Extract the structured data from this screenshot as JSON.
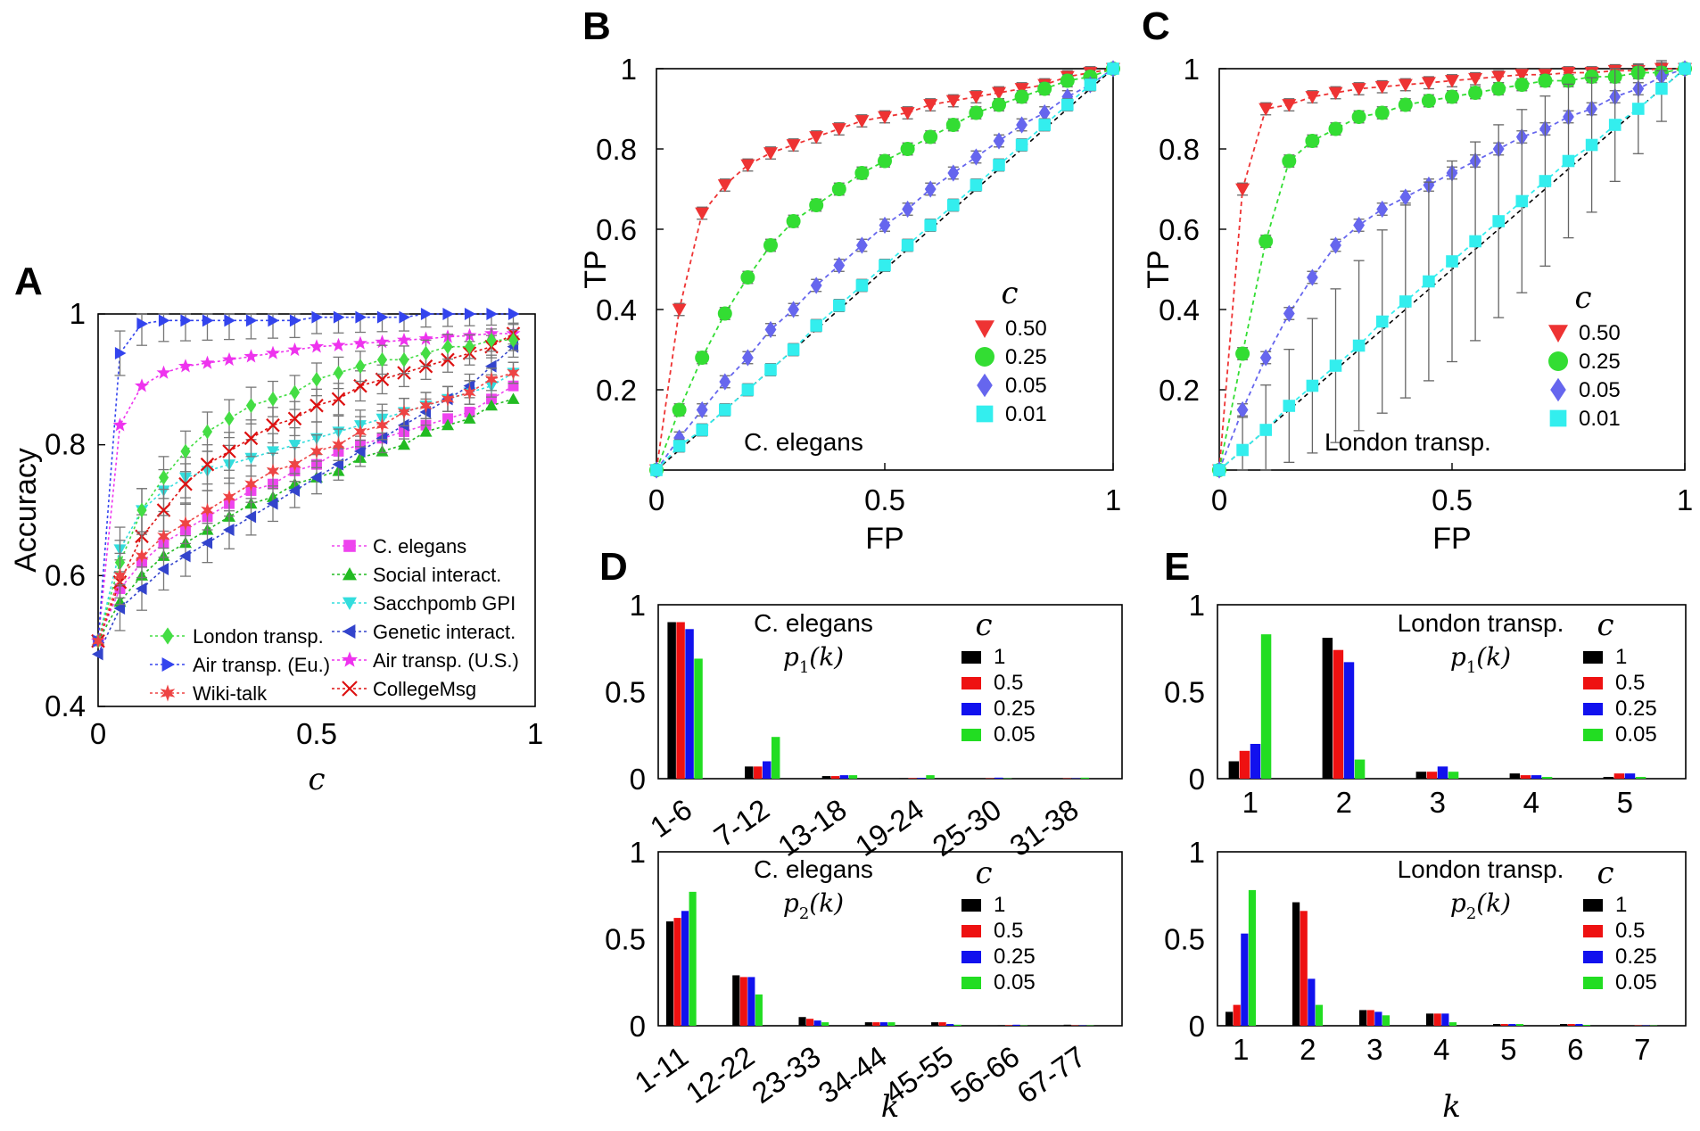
{
  "panel_labels": [
    "A",
    "B",
    "C",
    "D",
    "E"
  ],
  "chart_data": [
    {
      "id": "A",
      "type": "line",
      "xlabel": "c",
      "ylabel": "Accuracy",
      "xlim": [
        0,
        1
      ],
      "ylim": [
        0.4,
        1
      ],
      "xticks": [
        "0",
        "0.5",
        "1"
      ],
      "yticks": [
        "0.4",
        "0.6",
        "0.8",
        "1"
      ],
      "x": [
        0,
        0.05,
        0.1,
        0.15,
        0.2,
        0.25,
        0.3,
        0.35,
        0.4,
        0.45,
        0.5,
        0.55,
        0.6,
        0.65,
        0.7,
        0.75,
        0.8,
        0.85,
        0.9,
        0.95
      ],
      "series": [
        {
          "name": "C. elegans",
          "color": "#ee44ee",
          "marker": "square",
          "errors": false,
          "values": [
            0.5,
            0.58,
            0.62,
            0.65,
            0.67,
            0.69,
            0.71,
            0.73,
            0.74,
            0.76,
            0.77,
            0.79,
            0.8,
            0.81,
            0.82,
            0.83,
            0.84,
            0.85,
            0.87,
            0.89
          ]
        },
        {
          "name": "Social interact.",
          "color": "#22bb22",
          "marker": "triangle-up",
          "errors": false,
          "values": [
            0.5,
            0.56,
            0.6,
            0.63,
            0.65,
            0.67,
            0.69,
            0.71,
            0.72,
            0.74,
            0.75,
            0.76,
            0.78,
            0.79,
            0.8,
            0.82,
            0.83,
            0.84,
            0.86,
            0.87
          ]
        },
        {
          "name": "Sacchpomb GPI",
          "color": "#33dddd",
          "marker": "triangle-down",
          "errors": true,
          "values": [
            0.5,
            0.64,
            0.7,
            0.73,
            0.75,
            0.76,
            0.77,
            0.78,
            0.79,
            0.8,
            0.81,
            0.82,
            0.83,
            0.84,
            0.85,
            0.86,
            0.87,
            0.88,
            0.89,
            0.91
          ]
        },
        {
          "name": "Genetic interact.",
          "color": "#3344cc",
          "marker": "triangle-left",
          "errors": true,
          "values": [
            0.48,
            0.55,
            0.58,
            0.61,
            0.63,
            0.65,
            0.67,
            0.69,
            0.71,
            0.73,
            0.75,
            0.77,
            0.79,
            0.81,
            0.83,
            0.85,
            0.87,
            0.89,
            0.92,
            0.95
          ]
        },
        {
          "name": "Air transp. (U.S.)",
          "color": "#ee33ee",
          "marker": "star",
          "errors": false,
          "values": [
            0.5,
            0.83,
            0.89,
            0.91,
            0.92,
            0.925,
            0.93,
            0.935,
            0.94,
            0.945,
            0.95,
            0.952,
            0.955,
            0.957,
            0.96,
            0.962,
            0.965,
            0.967,
            0.97,
            0.97
          ]
        },
        {
          "name": "CollegeMsg",
          "color": "#dd1111",
          "marker": "x",
          "errors": true,
          "values": [
            0.5,
            0.59,
            0.66,
            0.7,
            0.74,
            0.77,
            0.79,
            0.81,
            0.83,
            0.84,
            0.86,
            0.87,
            0.89,
            0.9,
            0.91,
            0.92,
            0.93,
            0.94,
            0.95,
            0.97
          ]
        },
        {
          "name": "London transp.",
          "color": "#44dd44",
          "marker": "diamond",
          "errors": true,
          "values": [
            0.5,
            0.62,
            0.7,
            0.75,
            0.79,
            0.82,
            0.84,
            0.86,
            0.87,
            0.88,
            0.9,
            0.91,
            0.92,
            0.93,
            0.93,
            0.94,
            0.95,
            0.95,
            0.96,
            0.96
          ]
        },
        {
          "name": "Air transp. (Eu.)",
          "color": "#3344ee",
          "marker": "triangle-right",
          "errors": true,
          "values": [
            0.5,
            0.94,
            0.985,
            0.99,
            0.99,
            0.99,
            0.99,
            0.99,
            0.99,
            0.99,
            0.995,
            0.995,
            0.995,
            0.995,
            0.995,
            1,
            1,
            1,
            1,
            1
          ]
        },
        {
          "name": "Wiki-talk",
          "color": "#ee4444",
          "marker": "hexstar",
          "errors": true,
          "values": [
            0.5,
            0.6,
            0.63,
            0.66,
            0.68,
            0.7,
            0.72,
            0.74,
            0.76,
            0.77,
            0.79,
            0.8,
            0.82,
            0.83,
            0.85,
            0.86,
            0.87,
            0.88,
            0.9,
            0.91
          ]
        }
      ],
      "legend_right": [
        "C. elegans",
        "Social interact.",
        "Sacchpomb GPI",
        "Genetic interact.",
        "Air transp. (U.S.)",
        "CollegeMsg"
      ],
      "legend_left": [
        "London transp.",
        "Air transp. (Eu.)",
        "Wiki-talk"
      ]
    },
    {
      "id": "B",
      "type": "line",
      "annotation": "C. elegans",
      "xlabel": "FP",
      "ylabel": "TP",
      "xlim": [
        0,
        1
      ],
      "ylim": [
        0,
        1
      ],
      "xticks": [
        "0",
        "0.5",
        "1"
      ],
      "yticks": [
        "0.2",
        "0.4",
        "0.6",
        "0.8",
        "1"
      ],
      "legend_title": "c",
      "x": [
        0,
        0.05,
        0.1,
        0.15,
        0.2,
        0.25,
        0.3,
        0.35,
        0.4,
        0.45,
        0.5,
        0.55,
        0.6,
        0.65,
        0.7,
        0.75,
        0.8,
        0.85,
        0.9,
        0.95,
        1
      ],
      "series": [
        {
          "name": "0.50",
          "color": "#ee3333",
          "marker": "triangle-down",
          "values": [
            0,
            0.4,
            0.64,
            0.71,
            0.76,
            0.79,
            0.81,
            0.83,
            0.85,
            0.87,
            0.88,
            0.89,
            0.91,
            0.92,
            0.93,
            0.94,
            0.95,
            0.96,
            0.98,
            0.99,
            1
          ]
        },
        {
          "name": "0.25",
          "color": "#33dd33",
          "marker": "circle",
          "values": [
            0,
            0.15,
            0.28,
            0.39,
            0.48,
            0.56,
            0.62,
            0.66,
            0.7,
            0.74,
            0.77,
            0.8,
            0.83,
            0.86,
            0.89,
            0.91,
            0.93,
            0.95,
            0.97,
            0.98,
            1
          ]
        },
        {
          "name": "0.05",
          "color": "#6666ee",
          "marker": "diamond",
          "values": [
            0,
            0.08,
            0.15,
            0.22,
            0.28,
            0.35,
            0.4,
            0.46,
            0.51,
            0.56,
            0.61,
            0.65,
            0.7,
            0.74,
            0.78,
            0.82,
            0.86,
            0.89,
            0.93,
            0.96,
            1
          ]
        },
        {
          "name": "0.01",
          "color": "#33eeee",
          "marker": "square",
          "values": [
            0,
            0.06,
            0.1,
            0.15,
            0.2,
            0.25,
            0.3,
            0.36,
            0.41,
            0.46,
            0.51,
            0.56,
            0.61,
            0.66,
            0.71,
            0.76,
            0.81,
            0.86,
            0.91,
            0.96,
            1
          ]
        }
      ]
    },
    {
      "id": "C",
      "type": "line",
      "annotation": "London transp.",
      "xlabel": "FP",
      "ylabel": "TP",
      "xlim": [
        0,
        1
      ],
      "ylim": [
        0,
        1
      ],
      "xticks": [
        "0",
        "0.5",
        "1"
      ],
      "yticks": [
        "0.2",
        "0.4",
        "0.6",
        "0.8",
        "1"
      ],
      "legend_title": "c",
      "x": [
        0,
        0.05,
        0.1,
        0.15,
        0.2,
        0.25,
        0.3,
        0.35,
        0.4,
        0.45,
        0.5,
        0.55,
        0.6,
        0.65,
        0.7,
        0.75,
        0.8,
        0.85,
        0.9,
        0.95,
        1
      ],
      "series": [
        {
          "name": "0.50",
          "color": "#ee3333",
          "marker": "triangle-down",
          "values": [
            0,
            0.7,
            0.9,
            0.91,
            0.93,
            0.94,
            0.95,
            0.955,
            0.96,
            0.965,
            0.97,
            0.975,
            0.98,
            0.985,
            0.985,
            0.99,
            0.99,
            0.995,
            0.995,
            1,
            1
          ]
        },
        {
          "name": "0.25",
          "color": "#33dd33",
          "marker": "circle",
          "values": [
            0,
            0.29,
            0.57,
            0.77,
            0.82,
            0.85,
            0.88,
            0.89,
            0.91,
            0.92,
            0.93,
            0.94,
            0.95,
            0.96,
            0.97,
            0.97,
            0.98,
            0.98,
            0.99,
            0.99,
            1
          ]
        },
        {
          "name": "0.05",
          "color": "#6666ee",
          "marker": "diamond",
          "values": [
            0,
            0.15,
            0.28,
            0.39,
            0.48,
            0.56,
            0.61,
            0.65,
            0.68,
            0.71,
            0.74,
            0.77,
            0.8,
            0.83,
            0.85,
            0.88,
            0.9,
            0.93,
            0.95,
            0.98,
            1
          ]
        },
        {
          "name": "0.01",
          "color": "#33eeee",
          "marker": "square",
          "values": [
            0,
            0.05,
            0.1,
            0.16,
            0.21,
            0.26,
            0.31,
            0.37,
            0.42,
            0.47,
            0.52,
            0.57,
            0.62,
            0.67,
            0.72,
            0.77,
            0.81,
            0.86,
            0.9,
            0.95,
            1
          ]
        }
      ]
    },
    {
      "id": "D1",
      "type": "bar",
      "annotation": "C. elegans",
      "ylabel_math": "p1(k)",
      "ylim": [
        0,
        1
      ],
      "yticks": [
        "0",
        "0.5",
        "1"
      ],
      "categories": [
        "1-6",
        "7-12",
        "13-18",
        "19-24",
        "25-30",
        "31-38"
      ],
      "legend_title": "c",
      "series": [
        {
          "name": "1",
          "color": "#000000",
          "values": [
            0.9,
            0.07,
            0.015,
            0.003,
            0.002,
            0.002
          ]
        },
        {
          "name": "0.5",
          "color": "#ee1111",
          "values": [
            0.9,
            0.07,
            0.015,
            0.003,
            0.002,
            0.002
          ]
        },
        {
          "name": "0.25",
          "color": "#1111ee",
          "values": [
            0.86,
            0.1,
            0.02,
            0.004,
            0.006,
            0.002
          ]
        },
        {
          "name": "0.05",
          "color": "#22dd22",
          "values": [
            0.69,
            0.24,
            0.02,
            0.02,
            0.002,
            0.006
          ]
        }
      ]
    },
    {
      "id": "D2",
      "type": "bar",
      "annotation": "C. elegans",
      "ylabel_math": "p2(k)",
      "xlabel": "k",
      "ylim": [
        0,
        1
      ],
      "yticks": [
        "0",
        "0.5",
        "1"
      ],
      "categories": [
        "1-11",
        "12-22",
        "23-33",
        "34-44",
        "45-55",
        "56-66",
        "67-77"
      ],
      "legend_title": "c",
      "series": [
        {
          "name": "1",
          "color": "#000000",
          "values": [
            0.6,
            0.29,
            0.05,
            0.02,
            0.02,
            0.003,
            0.006
          ]
        },
        {
          "name": "0.5",
          "color": "#ee1111",
          "values": [
            0.62,
            0.28,
            0.04,
            0.02,
            0.02,
            0.003,
            0.002
          ]
        },
        {
          "name": "0.25",
          "color": "#1111ee",
          "values": [
            0.66,
            0.28,
            0.03,
            0.02,
            0.01,
            0.006,
            0.002
          ]
        },
        {
          "name": "0.05",
          "color": "#22dd22",
          "values": [
            0.77,
            0.18,
            0.02,
            0.02,
            0.006,
            0.002,
            0.002
          ]
        }
      ]
    },
    {
      "id": "E1",
      "type": "bar",
      "annotation": "London transp.",
      "ylabel_math": "p1(k)",
      "ylim": [
        0,
        1
      ],
      "yticks": [
        "0",
        "0.5",
        "1"
      ],
      "categories": [
        "1",
        "2",
        "3",
        "4",
        "5"
      ],
      "legend_title": "c",
      "series": [
        {
          "name": "1",
          "color": "#000000",
          "values": [
            0.1,
            0.81,
            0.04,
            0.03,
            0.01
          ]
        },
        {
          "name": "0.5",
          "color": "#ee1111",
          "values": [
            0.16,
            0.74,
            0.04,
            0.02,
            0.03
          ]
        },
        {
          "name": "0.25",
          "color": "#1111ee",
          "values": [
            0.2,
            0.67,
            0.07,
            0.02,
            0.03
          ]
        },
        {
          "name": "0.05",
          "color": "#22dd22",
          "values": [
            0.83,
            0.11,
            0.04,
            0.01,
            0.01
          ]
        }
      ]
    },
    {
      "id": "E2",
      "type": "bar",
      "annotation": "London transp.",
      "ylabel_math": "p2(k)",
      "xlabel": "k",
      "ylim": [
        0,
        1
      ],
      "yticks": [
        "0",
        "0.5",
        "1"
      ],
      "categories": [
        "1",
        "2",
        "3",
        "4",
        "5",
        "6",
        "7"
      ],
      "legend_title": "c",
      "series": [
        {
          "name": "1",
          "color": "#000000",
          "values": [
            0.08,
            0.71,
            0.09,
            0.07,
            0.01,
            0.01,
            0.002
          ]
        },
        {
          "name": "0.5",
          "color": "#ee1111",
          "values": [
            0.12,
            0.66,
            0.09,
            0.07,
            0.01,
            0.01,
            0.002
          ]
        },
        {
          "name": "0.25",
          "color": "#1111ee",
          "values": [
            0.53,
            0.27,
            0.08,
            0.07,
            0.01,
            0.01,
            0.002
          ]
        },
        {
          "name": "0.05",
          "color": "#22dd22",
          "values": [
            0.78,
            0.12,
            0.06,
            0.02,
            0.01,
            0.005,
            0.002
          ]
        }
      ]
    }
  ]
}
